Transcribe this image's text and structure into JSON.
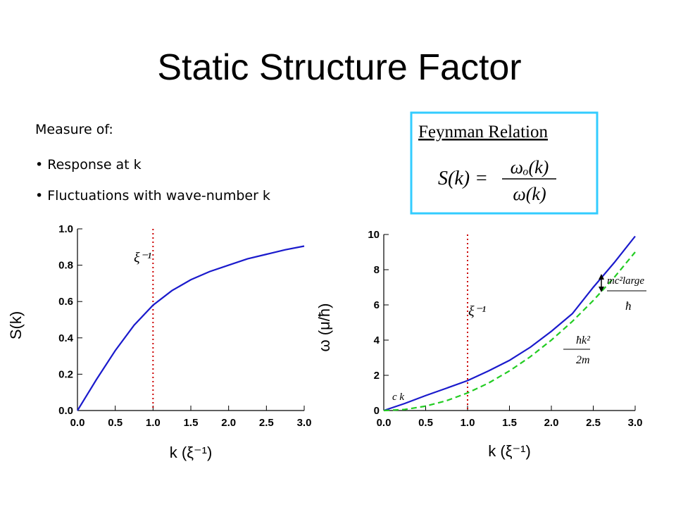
{
  "title": "Static Structure Factor",
  "intro": "Measure of:",
  "bullets": [
    "Response at k",
    "Fluctuations with wave-number k"
  ],
  "feynman": {
    "heading": "Feynman Relation",
    "lhs": "S(k) =",
    "numerator": "ωₒ(k)",
    "denominator": "ω(k)"
  },
  "chart_data": [
    {
      "type": "line",
      "xlabel": "k (ξ⁻¹)",
      "ylabel": "S(k)",
      "x": [
        0,
        0.25,
        0.5,
        0.75,
        1,
        1.25,
        1.5,
        1.75,
        2,
        2.25,
        2.5,
        2.75,
        3
      ],
      "series": [
        {
          "color": "#1a1acc",
          "values": [
            0,
            0.17,
            0.33,
            0.47,
            0.58,
            0.66,
            0.72,
            0.765,
            0.8,
            0.835,
            0.86,
            0.885,
            0.905
          ]
        }
      ],
      "xlim": [
        0,
        3
      ],
      "ylim": [
        0,
        1
      ],
      "xticks": [
        {
          "value": 0,
          "label": "0.0"
        },
        {
          "value": 0.5,
          "label": "0.5"
        },
        {
          "value": 1,
          "label": "1.0"
        },
        {
          "value": 1.5,
          "label": "1.5"
        },
        {
          "value": 2,
          "label": "2.0"
        },
        {
          "value": 2.5,
          "label": "2.5"
        },
        {
          "value": 3,
          "label": "3.0"
        }
      ],
      "yticks": [
        {
          "value": 0,
          "label": "0.0"
        },
        0.2,
        0.4,
        0.6,
        0.8,
        {
          "value": 1,
          "label": "1.0"
        }
      ],
      "vline": {
        "x": 1,
        "color": "#cc0000"
      },
      "annotations": [
        "ξ⁻¹"
      ]
    },
    {
      "type": "line",
      "xlabel": "k (ξ⁻¹)",
      "ylabel": "ω (μ/ħ)",
      "x": [
        0,
        0.25,
        0.5,
        0.75,
        1,
        1.25,
        1.5,
        1.75,
        2,
        2.25,
        2.5,
        2.75,
        3
      ],
      "series": [
        {
          "color": "#1a1acc",
          "dashed": false,
          "values": [
            0,
            0.4,
            0.85,
            1.27,
            1.7,
            2.25,
            2.85,
            3.6,
            4.5,
            5.5,
            7.0,
            8.4,
            9.9
          ]
        },
        {
          "color": "#22cc22",
          "dashed": true,
          "values": [
            0,
            0.06,
            0.25,
            0.56,
            1,
            1.56,
            2.25,
            3.06,
            4,
            5.06,
            6.25,
            7.56,
            9
          ]
        }
      ],
      "xlim": [
        0,
        3
      ],
      "ylim": [
        0,
        10
      ],
      "xticks": [
        {
          "value": 0,
          "label": "0.0"
        },
        {
          "value": 0.5,
          "label": "0.5"
        },
        {
          "value": 1,
          "label": "1.0"
        },
        {
          "value": 1.5,
          "label": "1.5"
        },
        {
          "value": 2,
          "label": "2.0"
        },
        {
          "value": 2.5,
          "label": "2.5"
        },
        {
          "value": 3,
          "label": "3.0"
        }
      ],
      "yticks": [
        0,
        2,
        4,
        6,
        8,
        10
      ],
      "vline": {
        "x": 1,
        "color": "#cc0000"
      },
      "annotations": [
        "ξ⁻¹",
        "c k",
        "mc²large",
        "ħ",
        "ħk²",
        "2m"
      ]
    }
  ]
}
